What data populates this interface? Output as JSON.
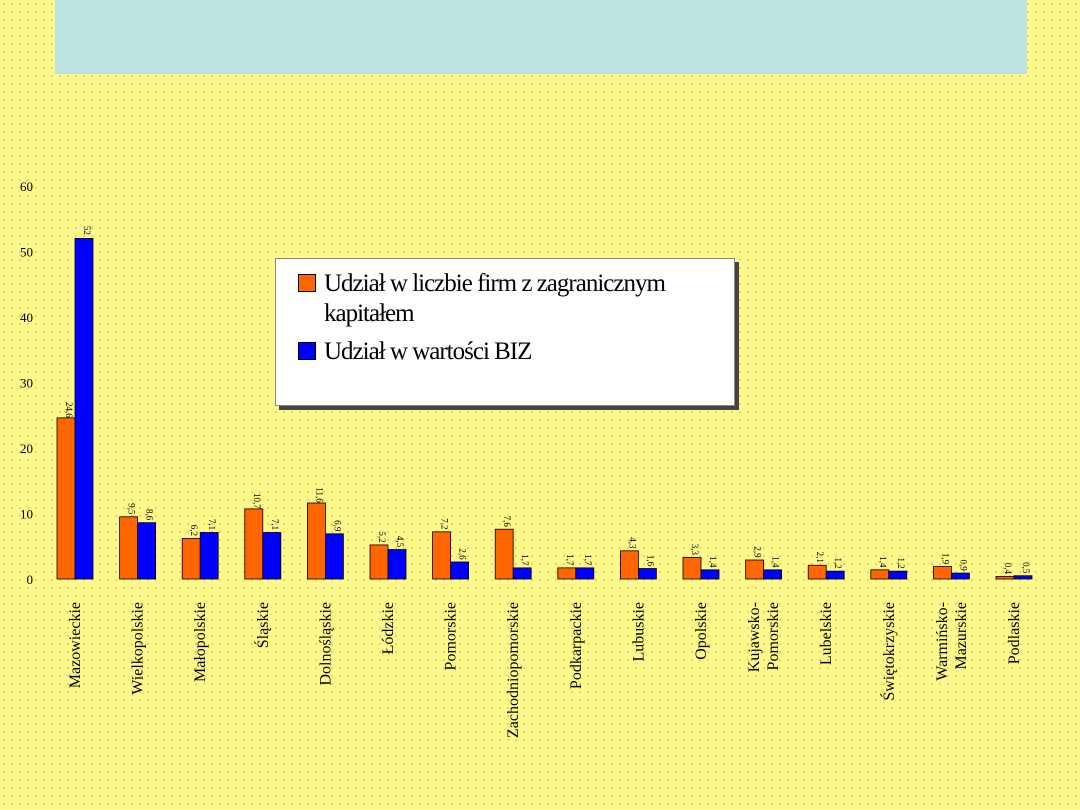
{
  "chart_data": {
    "type": "bar",
    "title": "",
    "xlabel": "",
    "ylabel": "",
    "ylim": [
      0,
      60
    ],
    "yticks": [
      0,
      10,
      20,
      30,
      40,
      50,
      60
    ],
    "grid": false,
    "legend_position": "top-center",
    "categories": [
      "Mazowieckie",
      "Wielkopolskie",
      "Małopolskie",
      "Śląskie",
      "Dolnośląskie",
      "Łódzkie",
      "Pomorskie",
      "Zachodniopomorskie",
      "Podkarpackie",
      "Lubuskie",
      "Opolskie",
      "Kujawsko-Pomorskie",
      "Lubelskie",
      "Świętokrzyskie",
      "Warmińsko-Mazurskie",
      "Podlaskie"
    ],
    "series": [
      {
        "name": "Udział w liczbie firm z zagranicznym kapitałem",
        "color": "#ff6600",
        "values": [
          24.6,
          9.5,
          6.2,
          10.7,
          11.6,
          5.2,
          7.2,
          7.6,
          1.7,
          4.3,
          3.3,
          2.9,
          2.1,
          1.4,
          1.9,
          0.4
        ]
      },
      {
        "name": "Udział w wartości BIZ",
        "color": "#0000ff",
        "values": [
          52.0,
          8.6,
          7.1,
          7.1,
          6.9,
          4.5,
          2.6,
          1.7,
          1.7,
          1.6,
          1.4,
          1.4,
          1.2,
          1.2,
          0.9,
          0.5
        ]
      }
    ]
  }
}
